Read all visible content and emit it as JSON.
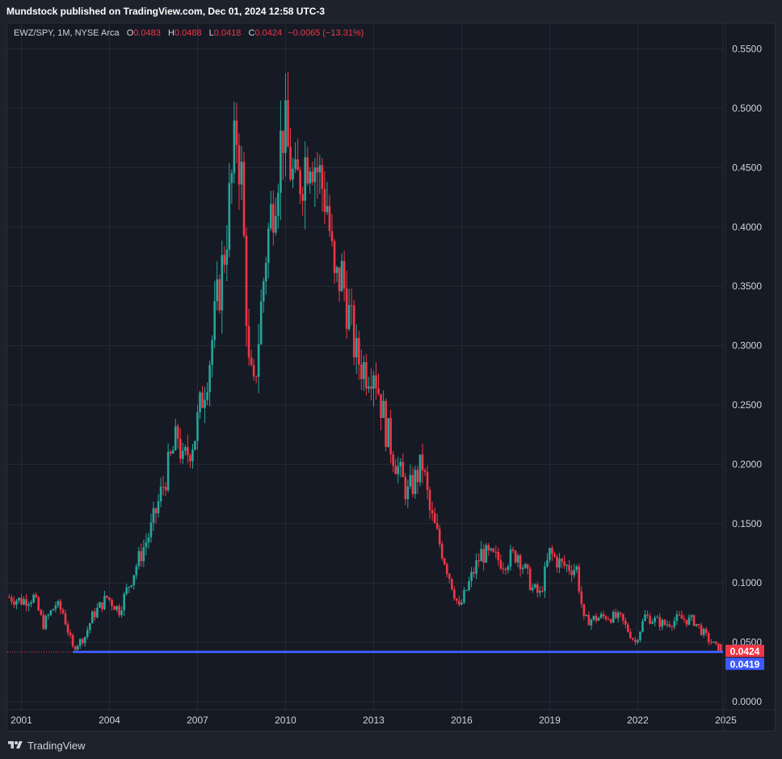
{
  "header": {
    "publish_line": "Mundstock published on TradingView.com, Dec 01, 2024 12:58 UTC-3"
  },
  "legend": {
    "symbol_line": "EWZ/SPY, 1M, NYSE Arca",
    "o_label": "O",
    "o_value": "0.0483",
    "h_label": "H",
    "h_value": "0.0488",
    "l_label": "L",
    "l_value": "0.0418",
    "c_label": "C",
    "c_value": "0.0424",
    "change": "−0.0065 (−13.31%)"
  },
  "footer": {
    "brand": "TradingView",
    "logo_icon": "tradingview-logo-icon"
  },
  "colors": {
    "up": "#26a69a",
    "down": "#f23645",
    "support_line": "#3d5afe",
    "grid": "#262a35",
    "axis_text": "#d1d4dc",
    "background": "#161a25"
  },
  "chart_data": {
    "type": "candlestick",
    "symbol": "EWZ/SPY",
    "interval": "1M",
    "exchange": "NYSE Arca",
    "y_ticks": [
      "0.0000",
      "0.0500",
      "0.1000",
      "0.1500",
      "0.2000",
      "0.2500",
      "0.3000",
      "0.3500",
      "0.4000",
      "0.4500",
      "0.5000",
      "0.5500"
    ],
    "x_ticks": [
      "2001",
      "2004",
      "2007",
      "2010",
      "2013",
      "2016",
      "2019",
      "2022",
      "2025"
    ],
    "ylim": [
      0,
      0.55
    ],
    "xlim": [
      "2000-08",
      "2025-02"
    ],
    "grid": true,
    "last_price": {
      "value": 0.0424,
      "label": "0.0424",
      "color": "#f23645"
    },
    "support_level": {
      "value": 0.0419,
      "label": "0.0419",
      "color": "#3d5afe",
      "start": "2002-10"
    },
    "series_anchors": [
      [
        "2000-08",
        0.088
      ],
      [
        "2001-01",
        0.085
      ],
      [
        "2001-06",
        0.088
      ],
      [
        "2001-10",
        0.065
      ],
      [
        "2002-03",
        0.082
      ],
      [
        "2002-06",
        0.075
      ],
      [
        "2002-10",
        0.045
      ],
      [
        "2003-03",
        0.055
      ],
      [
        "2003-06",
        0.072
      ],
      [
        "2003-12",
        0.088
      ],
      [
        "2004-05",
        0.077
      ],
      [
        "2004-12",
        0.115
      ],
      [
        "2005-06",
        0.145
      ],
      [
        "2005-12",
        0.19
      ],
      [
        "2006-05",
        0.225
      ],
      [
        "2006-07",
        0.2
      ],
      [
        "2006-12",
        0.225
      ],
      [
        "2007-06",
        0.29
      ],
      [
        "2007-12",
        0.38
      ],
      [
        "2008-05",
        0.48
      ],
      [
        "2008-07",
        0.44
      ],
      [
        "2008-10",
        0.28
      ],
      [
        "2008-12",
        0.26
      ],
      [
        "2009-05",
        0.38
      ],
      [
        "2009-12",
        0.485
      ],
      [
        "2010-05",
        0.43
      ],
      [
        "2010-11",
        0.47
      ],
      [
        "2011-06",
        0.42
      ],
      [
        "2011-09",
        0.35
      ],
      [
        "2011-12",
        0.36
      ],
      [
        "2012-06",
        0.29
      ],
      [
        "2012-10",
        0.28
      ],
      [
        "2013-01",
        0.285
      ],
      [
        "2013-06",
        0.23
      ],
      [
        "2013-09",
        0.21
      ],
      [
        "2013-12",
        0.19
      ],
      [
        "2014-03",
        0.175
      ],
      [
        "2014-09",
        0.2
      ],
      [
        "2014-12",
        0.16
      ],
      [
        "2015-06",
        0.12
      ],
      [
        "2015-12",
        0.078
      ],
      [
        "2016-05",
        0.105
      ],
      [
        "2016-09",
        0.125
      ],
      [
        "2017-06",
        0.118
      ],
      [
        "2017-12",
        0.125
      ],
      [
        "2018-06",
        0.095
      ],
      [
        "2018-09",
        0.09
      ],
      [
        "2019-01",
        0.125
      ],
      [
        "2019-06",
        0.115
      ],
      [
        "2019-12",
        0.112
      ],
      [
        "2020-03",
        0.068
      ],
      [
        "2020-12",
        0.072
      ],
      [
        "2021-06",
        0.07
      ],
      [
        "2021-12",
        0.05
      ],
      [
        "2022-04",
        0.072
      ],
      [
        "2022-12",
        0.065
      ],
      [
        "2023-06",
        0.07
      ],
      [
        "2023-12",
        0.068
      ],
      [
        "2024-06",
        0.052
      ],
      [
        "2024-11",
        0.0424
      ]
    ],
    "last_candle": {
      "date": "2024-11",
      "open": 0.0483,
      "high": 0.0488,
      "low": 0.0418,
      "close": 0.0424
    }
  }
}
